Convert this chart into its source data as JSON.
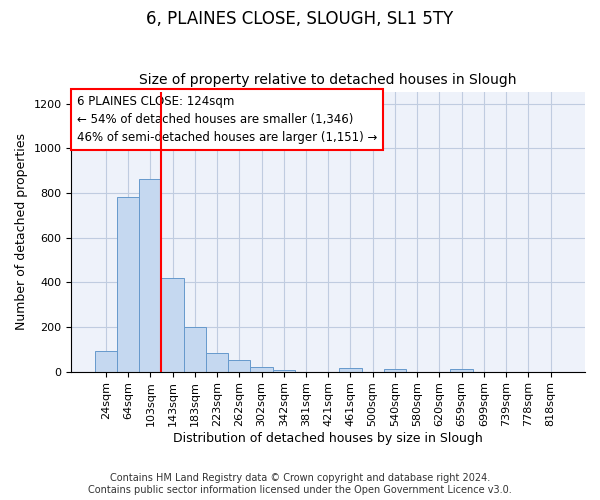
{
  "title": "6, PLAINES CLOSE, SLOUGH, SL1 5TY",
  "subtitle": "Size of property relative to detached houses in Slough",
  "xlabel": "Distribution of detached houses by size in Slough",
  "ylabel": "Number of detached properties",
  "footer_line1": "Contains HM Land Registry data © Crown copyright and database right 2024.",
  "footer_line2": "Contains public sector information licensed under the Open Government Licence v3.0.",
  "bar_labels": [
    "24sqm",
    "64sqm",
    "103sqm",
    "143sqm",
    "183sqm",
    "223sqm",
    "262sqm",
    "302sqm",
    "342sqm",
    "381sqm",
    "421sqm",
    "461sqm",
    "500sqm",
    "540sqm",
    "580sqm",
    "620sqm",
    "659sqm",
    "699sqm",
    "739sqm",
    "778sqm",
    "818sqm"
  ],
  "bar_values": [
    90,
    780,
    860,
    420,
    200,
    85,
    50,
    20,
    5,
    0,
    0,
    15,
    0,
    10,
    0,
    0,
    10,
    0,
    0,
    0,
    0
  ],
  "bar_color": "#c5d8f0",
  "bar_edge_color": "#6699cc",
  "grid_color": "#c0cce0",
  "background_color": "#eef2fa",
  "ylim": [
    0,
    1250
  ],
  "yticks": [
    0,
    200,
    400,
    600,
    800,
    1000,
    1200
  ],
  "red_line_index": 3,
  "annotation_text": "6 PLAINES CLOSE: 124sqm\n← 54% of detached houses are smaller (1,346)\n46% of semi-detached houses are larger (1,151) →",
  "property_sqm": 124,
  "title_fontsize": 12,
  "subtitle_fontsize": 10,
  "axis_label_fontsize": 9,
  "tick_fontsize": 8,
  "annotation_fontsize": 8.5,
  "footer_fontsize": 7
}
